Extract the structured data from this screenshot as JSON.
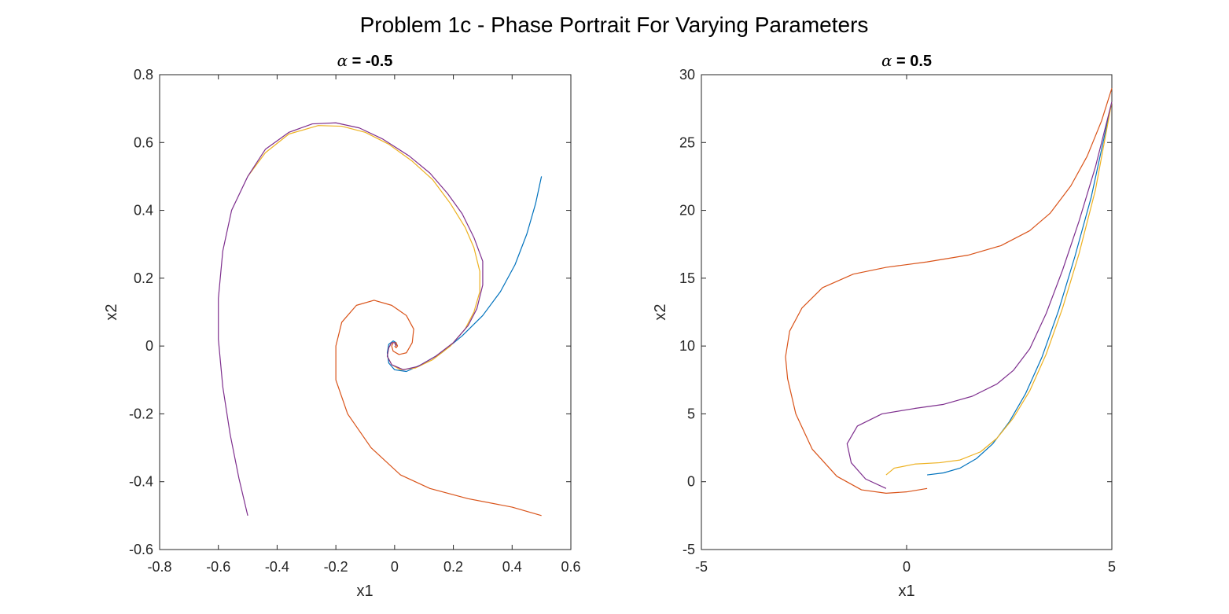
{
  "figure": {
    "title": "Problem 1c - Phase Portrait For Varying Parameters"
  },
  "colors": {
    "blue": "#0072BD",
    "orange": "#D95319",
    "yellow": "#EDB120",
    "purple": "#7E2F8E"
  },
  "chart_data": [
    {
      "type": "line",
      "title_symbol": "α",
      "title_value": " = -0.5",
      "xlabel": "x1",
      "ylabel": "x2",
      "xlim": [
        -0.8,
        0.6
      ],
      "ylim": [
        -0.6,
        0.8
      ],
      "xticks": [
        "-0.8",
        "-0.6",
        "-0.4",
        "-0.2",
        "0",
        "0.2",
        "0.4",
        "0.6"
      ],
      "yticks": [
        "-0.6",
        "-0.4",
        "-0.2",
        "0",
        "0.2",
        "0.4",
        "0.6",
        "0.8"
      ],
      "grid": false,
      "legend": "none",
      "series": [
        {
          "color": "#0072BD",
          "points": [
            [
              0.5,
              0.5
            ],
            [
              0.48,
              0.42
            ],
            [
              0.45,
              0.33
            ],
            [
              0.41,
              0.24
            ],
            [
              0.36,
              0.16
            ],
            [
              0.3,
              0.09
            ],
            [
              0.23,
              0.03
            ],
            [
              0.16,
              -0.02
            ],
            [
              0.09,
              -0.055
            ],
            [
              0.04,
              -0.075
            ],
            [
              0.0,
              -0.07
            ],
            [
              -0.02,
              -0.05
            ],
            [
              -0.025,
              -0.02
            ],
            [
              -0.02,
              0.005
            ],
            [
              -0.005,
              0.015
            ],
            [
              0.005,
              0.01
            ],
            [
              0.005,
              0.0
            ]
          ]
        },
        {
          "color": "#D95319",
          "points": [
            [
              0.5,
              -0.5
            ],
            [
              0.4,
              -0.475
            ],
            [
              0.25,
              -0.45
            ],
            [
              0.12,
              -0.42
            ],
            [
              0.02,
              -0.38
            ],
            [
              -0.08,
              -0.3
            ],
            [
              -0.16,
              -0.2
            ],
            [
              -0.2,
              -0.1
            ],
            [
              -0.2,
              0.0
            ],
            [
              -0.18,
              0.07
            ],
            [
              -0.13,
              0.12
            ],
            [
              -0.07,
              0.135
            ],
            [
              -0.01,
              0.12
            ],
            [
              0.04,
              0.09
            ],
            [
              0.065,
              0.05
            ],
            [
              0.06,
              0.01
            ],
            [
              0.04,
              -0.02
            ],
            [
              0.015,
              -0.025
            ],
            [
              -0.005,
              -0.015
            ],
            [
              -0.01,
              0.0
            ],
            [
              -0.005,
              0.01
            ],
            [
              0.005,
              0.01
            ],
            [
              0.01,
              0.0
            ],
            [
              0.005,
              -0.005
            ],
            [
              0.0,
              0.0
            ]
          ]
        },
        {
          "color": "#EDB120",
          "points": [
            [
              -0.5,
              0.5
            ],
            [
              -0.44,
              0.57
            ],
            [
              -0.36,
              0.625
            ],
            [
              -0.26,
              0.65
            ],
            [
              -0.18,
              0.648
            ],
            [
              -0.1,
              0.63
            ],
            [
              -0.02,
              0.595
            ],
            [
              0.06,
              0.545
            ],
            [
              0.13,
              0.49
            ],
            [
              0.19,
              0.42
            ],
            [
              0.24,
              0.35
            ],
            [
              0.27,
              0.29
            ],
            [
              0.29,
              0.22
            ],
            [
              0.29,
              0.16
            ],
            [
              0.27,
              0.1
            ],
            [
              0.24,
              0.05
            ],
            [
              0.19,
              0.0
            ],
            [
              0.13,
              -0.04
            ],
            [
              0.07,
              -0.065
            ],
            [
              0.02,
              -0.07
            ],
            [
              -0.01,
              -0.055
            ],
            [
              -0.025,
              -0.03
            ],
            [
              -0.02,
              -0.005
            ],
            [
              -0.01,
              0.01
            ],
            [
              0.0,
              0.01
            ],
            [
              0.005,
              0.0
            ]
          ]
        },
        {
          "color": "#7E2F8E",
          "points": [
            [
              -0.5,
              -0.5
            ],
            [
              -0.53,
              -0.39
            ],
            [
              -0.56,
              -0.26
            ],
            [
              -0.585,
              -0.12
            ],
            [
              -0.6,
              0.02
            ],
            [
              -0.6,
              0.14
            ],
            [
              -0.585,
              0.28
            ],
            [
              -0.555,
              0.4
            ],
            [
              -0.5,
              0.5
            ],
            [
              -0.44,
              0.58
            ],
            [
              -0.36,
              0.63
            ],
            [
              -0.28,
              0.655
            ],
            [
              -0.2,
              0.658
            ],
            [
              -0.12,
              0.643
            ],
            [
              -0.04,
              0.61
            ],
            [
              0.05,
              0.56
            ],
            [
              0.12,
              0.51
            ],
            [
              0.18,
              0.45
            ],
            [
              0.23,
              0.39
            ],
            [
              0.27,
              0.32
            ],
            [
              0.3,
              0.25
            ],
            [
              0.3,
              0.18
            ],
            [
              0.28,
              0.11
            ],
            [
              0.25,
              0.06
            ],
            [
              0.2,
              0.01
            ],
            [
              0.14,
              -0.03
            ],
            [
              0.08,
              -0.06
            ],
            [
              0.03,
              -0.07
            ],
            [
              -0.01,
              -0.055
            ],
            [
              -0.025,
              -0.03
            ],
            [
              -0.02,
              -0.005
            ],
            [
              -0.01,
              0.01
            ],
            [
              0.0,
              0.01
            ],
            [
              0.005,
              0.0
            ]
          ]
        }
      ]
    },
    {
      "type": "line",
      "title_symbol": "α",
      "title_value": " = 0.5",
      "xlabel": "x1",
      "ylabel": "x2",
      "xlim": [
        -5,
        5
      ],
      "ylim": [
        -5,
        30
      ],
      "xticks": [
        "-5",
        "0",
        "5"
      ],
      "yticks": [
        "-5",
        "0",
        "5",
        "10",
        "15",
        "20",
        "25",
        "30"
      ],
      "grid": false,
      "legend": "none",
      "series": [
        {
          "color": "#0072BD",
          "points": [
            [
              0.5,
              0.5
            ],
            [
              0.9,
              0.65
            ],
            [
              1.3,
              1.0
            ],
            [
              1.7,
              1.7
            ],
            [
              2.1,
              2.8
            ],
            [
              2.5,
              4.4
            ],
            [
              2.9,
              6.5
            ],
            [
              3.3,
              9.2
            ],
            [
              3.7,
              12.6
            ],
            [
              4.1,
              16.6
            ],
            [
              4.5,
              21.0
            ],
            [
              5.0,
              28.0
            ]
          ]
        },
        {
          "color": "#D95319",
          "points": [
            [
              0.5,
              -0.5
            ],
            [
              0.0,
              -0.75
            ],
            [
              -0.5,
              -0.85
            ],
            [
              -1.1,
              -0.6
            ],
            [
              -1.7,
              0.4
            ],
            [
              -2.3,
              2.4
            ],
            [
              -2.7,
              5.0
            ],
            [
              -2.9,
              7.6
            ],
            [
              -2.95,
              9.2
            ],
            [
              -2.85,
              11.1
            ],
            [
              -2.55,
              12.8
            ],
            [
              -2.05,
              14.3
            ],
            [
              -1.3,
              15.3
            ],
            [
              -0.5,
              15.8
            ],
            [
              0.5,
              16.2
            ],
            [
              1.5,
              16.7
            ],
            [
              2.3,
              17.4
            ],
            [
              3.0,
              18.5
            ],
            [
              3.5,
              19.8
            ],
            [
              4.0,
              21.8
            ],
            [
              4.4,
              24.0
            ],
            [
              4.75,
              26.6
            ],
            [
              5.0,
              29.0
            ]
          ]
        },
        {
          "color": "#EDB120",
          "points": [
            [
              -0.5,
              0.5
            ],
            [
              -0.3,
              1.0
            ],
            [
              0.2,
              1.3
            ],
            [
              0.8,
              1.4
            ],
            [
              1.3,
              1.6
            ],
            [
              1.8,
              2.2
            ],
            [
              2.2,
              3.2
            ],
            [
              2.6,
              4.7
            ],
            [
              3.0,
              6.7
            ],
            [
              3.4,
              9.4
            ],
            [
              3.8,
              12.8
            ],
            [
              4.2,
              16.8
            ],
            [
              4.6,
              21.5
            ],
            [
              5.0,
              28.0
            ]
          ]
        },
        {
          "color": "#7E2F8E",
          "points": [
            [
              -0.5,
              -0.5
            ],
            [
              -1.0,
              0.2
            ],
            [
              -1.35,
              1.4
            ],
            [
              -1.45,
              2.8
            ],
            [
              -1.2,
              4.1
            ],
            [
              -0.6,
              5.0
            ],
            [
              0.2,
              5.4
            ],
            [
              0.9,
              5.7
            ],
            [
              1.6,
              6.3
            ],
            [
              2.2,
              7.2
            ],
            [
              2.6,
              8.2
            ],
            [
              3.0,
              9.8
            ],
            [
              3.4,
              12.4
            ],
            [
              3.8,
              15.6
            ],
            [
              4.2,
              19.2
            ],
            [
              4.6,
              23.2
            ],
            [
              5.0,
              28.0
            ]
          ]
        }
      ]
    }
  ]
}
